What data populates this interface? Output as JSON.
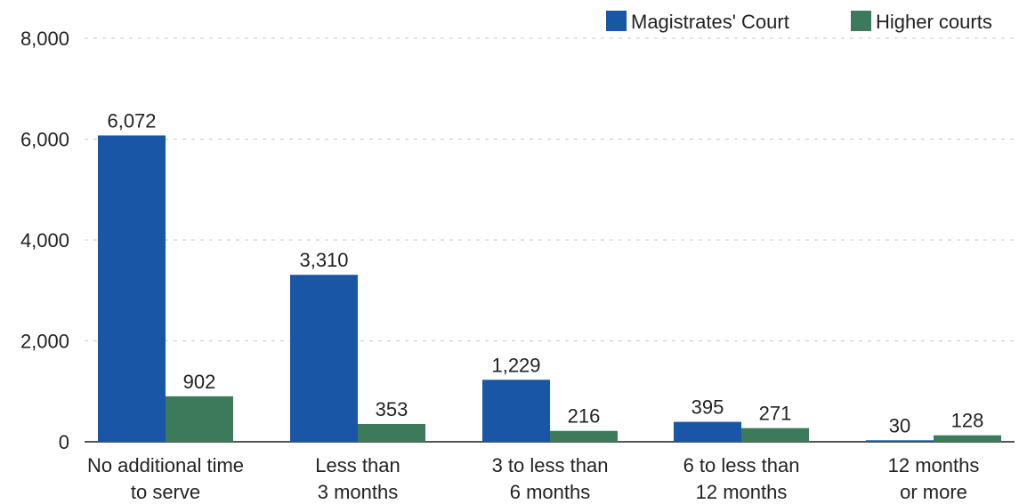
{
  "chart_data": {
    "type": "bar",
    "title": "",
    "xlabel": "",
    "ylabel": "",
    "categories": [
      [
        "No additional time",
        "to serve"
      ],
      [
        "Less than",
        "3 months"
      ],
      [
        "3 to less than",
        "6 months"
      ],
      [
        "6 to less than",
        "12 months"
      ],
      [
        "12 months",
        "or more"
      ]
    ],
    "series": [
      {
        "name": "Magistrates' Court",
        "color": "#1a56a6",
        "values": [
          6072,
          3310,
          1229,
          395,
          30
        ],
        "labels": [
          "6,072",
          "3,310",
          "1,229",
          "395",
          "30"
        ]
      },
      {
        "name": "Higher courts",
        "color": "#3d7a5c",
        "values": [
          902,
          353,
          216,
          271,
          128
        ],
        "labels": [
          "902",
          "353",
          "216",
          "271",
          "128"
        ]
      }
    ],
    "ylim": [
      0,
      8000
    ],
    "yticks": [
      0,
      2000,
      4000,
      6000,
      8000
    ],
    "ytick_labels": [
      "0",
      "2,000",
      "4,000",
      "6,000",
      "8,000"
    ],
    "grid": true,
    "legend_position": "top-right"
  }
}
